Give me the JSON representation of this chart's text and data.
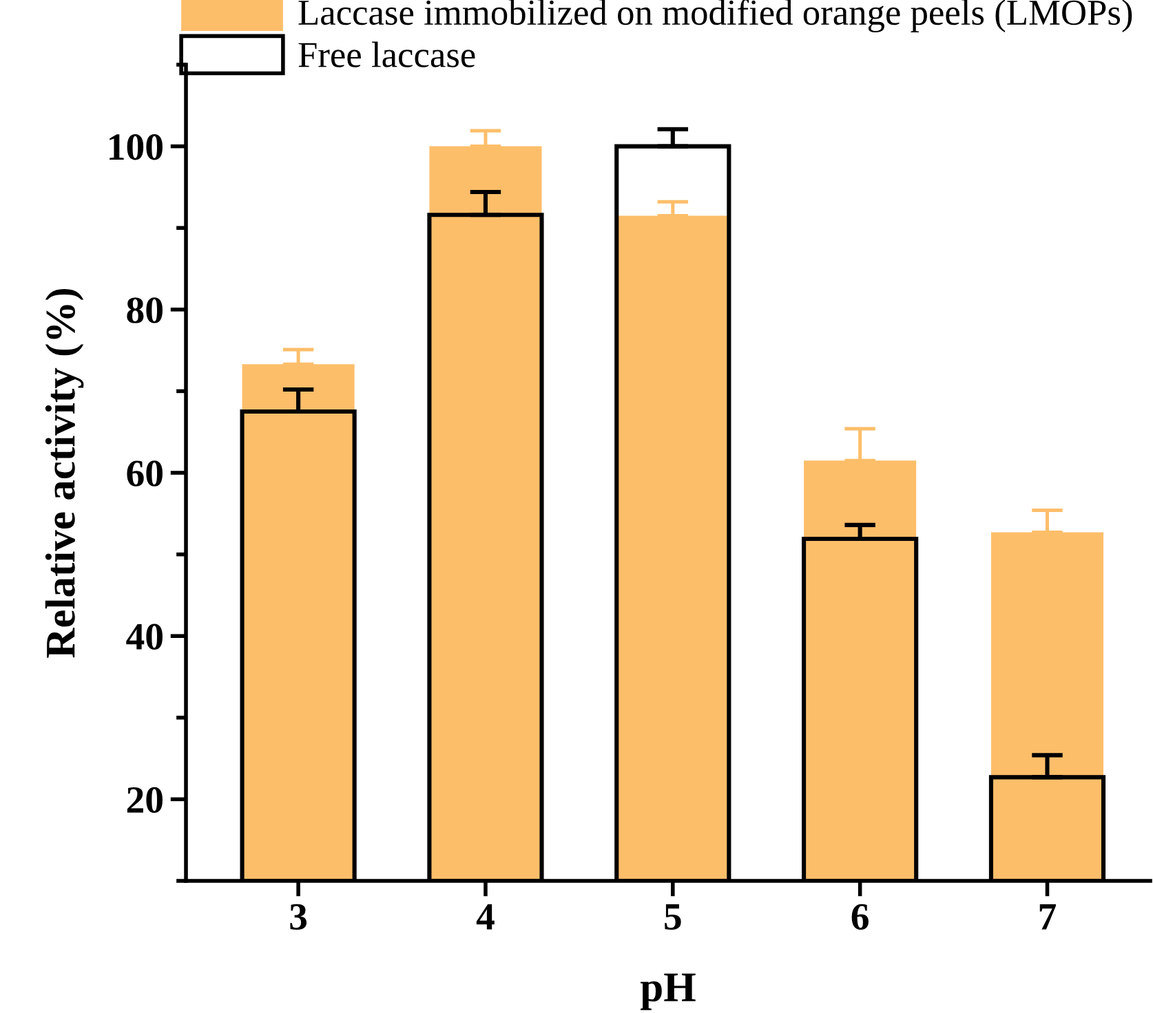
{
  "chart_data": {
    "type": "bar",
    "xlabel": "pH",
    "ylabel": "Relative activity (%)",
    "categories": [
      "3",
      "4",
      "5",
      "6",
      "7"
    ],
    "series": [
      {
        "name": "Laccase immobilized on modified orange peels (LMOPs)",
        "color": "#fdbe6a",
        "values": [
          73.3,
          100,
          91.5,
          61.5,
          52.7
        ],
        "errors": [
          [
            73.3,
            75.1
          ],
          [
            100,
            101.9
          ],
          [
            91.5,
            93.2
          ],
          [
            61.5,
            65.4
          ],
          [
            52.7,
            55.4
          ]
        ]
      },
      {
        "name": "Free laccase",
        "color": "#000000",
        "values": [
          67.5,
          91.6,
          100,
          51.9,
          22.7
        ],
        "errors": [
          [
            67.5,
            70.2
          ],
          [
            91.6,
            94.4
          ],
          [
            100,
            102.1
          ],
          [
            51.9,
            53.6
          ],
          [
            22.7,
            25.4
          ]
        ]
      }
    ],
    "ylim": [
      10,
      110
    ],
    "yticks": [
      20,
      40,
      60,
      80,
      100
    ],
    "grid": false,
    "legend": "top left"
  }
}
